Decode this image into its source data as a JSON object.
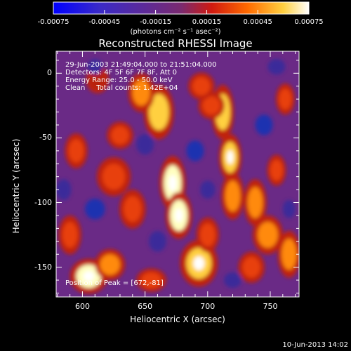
{
  "chart_data": {
    "type": "heatmap",
    "title": "Reconstructed RHESSI Image",
    "xlabel": "Heliocentric X (arcsec)",
    "ylabel": "Heliocentric Y (arcsec)",
    "x_range": [
      579,
      773
    ],
    "y_range": [
      -173,
      17
    ],
    "x_ticks": [
      {
        "value": 600,
        "label": "600"
      },
      {
        "value": 650,
        "label": "650"
      },
      {
        "value": 700,
        "label": "700"
      },
      {
        "value": 750,
        "label": "750"
      }
    ],
    "y_ticks": [
      {
        "value": 0,
        "label": "0"
      },
      {
        "value": -50,
        "label": "-50"
      },
      {
        "value": -100,
        "label": "-100"
      },
      {
        "value": -150,
        "label": "-150"
      }
    ],
    "colorbar": {
      "range": [
        -0.00075,
        0.00075
      ],
      "ticks": [
        {
          "value": -0.00075,
          "label": "-0.00075"
        },
        {
          "value": -0.00045,
          "label": "-0.00045"
        },
        {
          "value": -0.00015,
          "label": "-0.00015"
        },
        {
          "value": 0.00015,
          "label": "0.00015"
        },
        {
          "value": 0.00045,
          "label": "0.00045"
        },
        {
          "value": 0.00075,
          "label": "0.00075"
        }
      ],
      "units_label": "(photons cm⁻² s⁻¹ asec⁻²)",
      "colors": [
        "#0000ff",
        "#5b2a9a",
        "#7a2a70",
        "#d01a10",
        "#ff6a00",
        "#ffd040",
        "#ffffff"
      ]
    },
    "annotations": [
      "29-Jun-2003 21:49:04.000 to 21:51:04.000",
      "Detectors: 4F 5F 6F 7F 8F, Att 0",
      "Energy Range: 25.0 - 50.0 keV",
      "Clean     Total counts: 1.42E+04"
    ],
    "peak_label": "Position of Peak = [672,-81]",
    "peak_value": [
      672,
      -81
    ],
    "blobs": [
      {
        "x": 672,
        "y": -85,
        "sx": 7,
        "sy": 14,
        "v": 1.0
      },
      {
        "x": 677,
        "y": -110,
        "sx": 7,
        "sy": 12,
        "v": 0.9
      },
      {
        "x": 693,
        "y": -147,
        "sx": 10,
        "sy": 12,
        "v": 0.85
      },
      {
        "x": 661,
        "y": -30,
        "sx": 8,
        "sy": 14,
        "v": 0.75
      },
      {
        "x": 647,
        "y": -15,
        "sx": 7,
        "sy": 10,
        "v": 0.65
      },
      {
        "x": 712,
        "y": -30,
        "sx": 6,
        "sy": 14,
        "v": 0.8
      },
      {
        "x": 718,
        "y": -65,
        "sx": 6,
        "sy": 12,
        "v": 0.85
      },
      {
        "x": 720,
        "y": -95,
        "sx": 6,
        "sy": 12,
        "v": 0.65
      },
      {
        "x": 738,
        "y": -100,
        "sx": 6,
        "sy": 12,
        "v": 0.7
      },
      {
        "x": 748,
        "y": -125,
        "sx": 8,
        "sy": 10,
        "v": 0.6
      },
      {
        "x": 735,
        "y": -150,
        "sx": 7,
        "sy": 8,
        "v": 0.55
      },
      {
        "x": 765,
        "y": -140,
        "sx": 6,
        "sy": 12,
        "v": 0.6
      },
      {
        "x": 703,
        "y": -25,
        "sx": 7,
        "sy": 7,
        "v": 0.5
      },
      {
        "x": 695,
        "y": -10,
        "sx": 7,
        "sy": 7,
        "v": 0.45
      },
      {
        "x": 605,
        "y": -157,
        "sx": 10,
        "sy": 9,
        "v": 1.0
      },
      {
        "x": 622,
        "y": -148,
        "sx": 8,
        "sy": 8,
        "v": 0.7
      },
      {
        "x": 640,
        "y": -105,
        "sx": 7,
        "sy": 10,
        "v": 0.55
      },
      {
        "x": 625,
        "y": -80,
        "sx": 9,
        "sy": 10,
        "v": 0.55
      },
      {
        "x": 630,
        "y": -48,
        "sx": 7,
        "sy": 7,
        "v": 0.5
      },
      {
        "x": 595,
        "y": -60,
        "sx": 6,
        "sy": 9,
        "v": 0.5
      },
      {
        "x": 590,
        "y": -125,
        "sx": 6,
        "sy": 10,
        "v": 0.5
      },
      {
        "x": 655,
        "y": -160,
        "sx": 8,
        "sy": 6,
        "v": 0.45
      },
      {
        "x": 700,
        "y": -125,
        "sx": 6,
        "sy": 9,
        "v": 0.5
      },
      {
        "x": 612,
        "y": -5,
        "sx": 6,
        "sy": 7,
        "v": 0.4
      },
      {
        "x": 762,
        "y": -20,
        "sx": 5,
        "sy": 8,
        "v": 0.45
      },
      {
        "x": 755,
        "y": -75,
        "sx": 5,
        "sy": 8,
        "v": 0.45
      },
      {
        "x": 610,
        "y": -105,
        "sx": -8,
        "sy": 8,
        "v": -0.6
      },
      {
        "x": 585,
        "y": -90,
        "sx": -6,
        "sy": 8,
        "v": -0.5
      },
      {
        "x": 650,
        "y": -55,
        "sx": -7,
        "sy": 8,
        "v": -0.5
      },
      {
        "x": 690,
        "y": -60,
        "sx": -7,
        "sy": 8,
        "v": -0.55
      },
      {
        "x": 700,
        "y": -90,
        "sx": -6,
        "sy": 7,
        "v": -0.5
      },
      {
        "x": 745,
        "y": -40,
        "sx": -7,
        "sy": 8,
        "v": -0.6
      },
      {
        "x": 755,
        "y": 5,
        "sx": -7,
        "sy": 6,
        "v": -0.5
      },
      {
        "x": 610,
        "y": 5,
        "sx": -6,
        "sy": 6,
        "v": -0.45
      },
      {
        "x": 660,
        "y": -130,
        "sx": -7,
        "sy": 8,
        "v": -0.5
      },
      {
        "x": 720,
        "y": -160,
        "sx": -7,
        "sy": 6,
        "v": -0.45
      },
      {
        "x": 765,
        "y": -105,
        "sx": -5,
        "sy": 7,
        "v": -0.45
      }
    ]
  },
  "footer": {
    "timestamp": "10-Jun-2013 14:02"
  }
}
